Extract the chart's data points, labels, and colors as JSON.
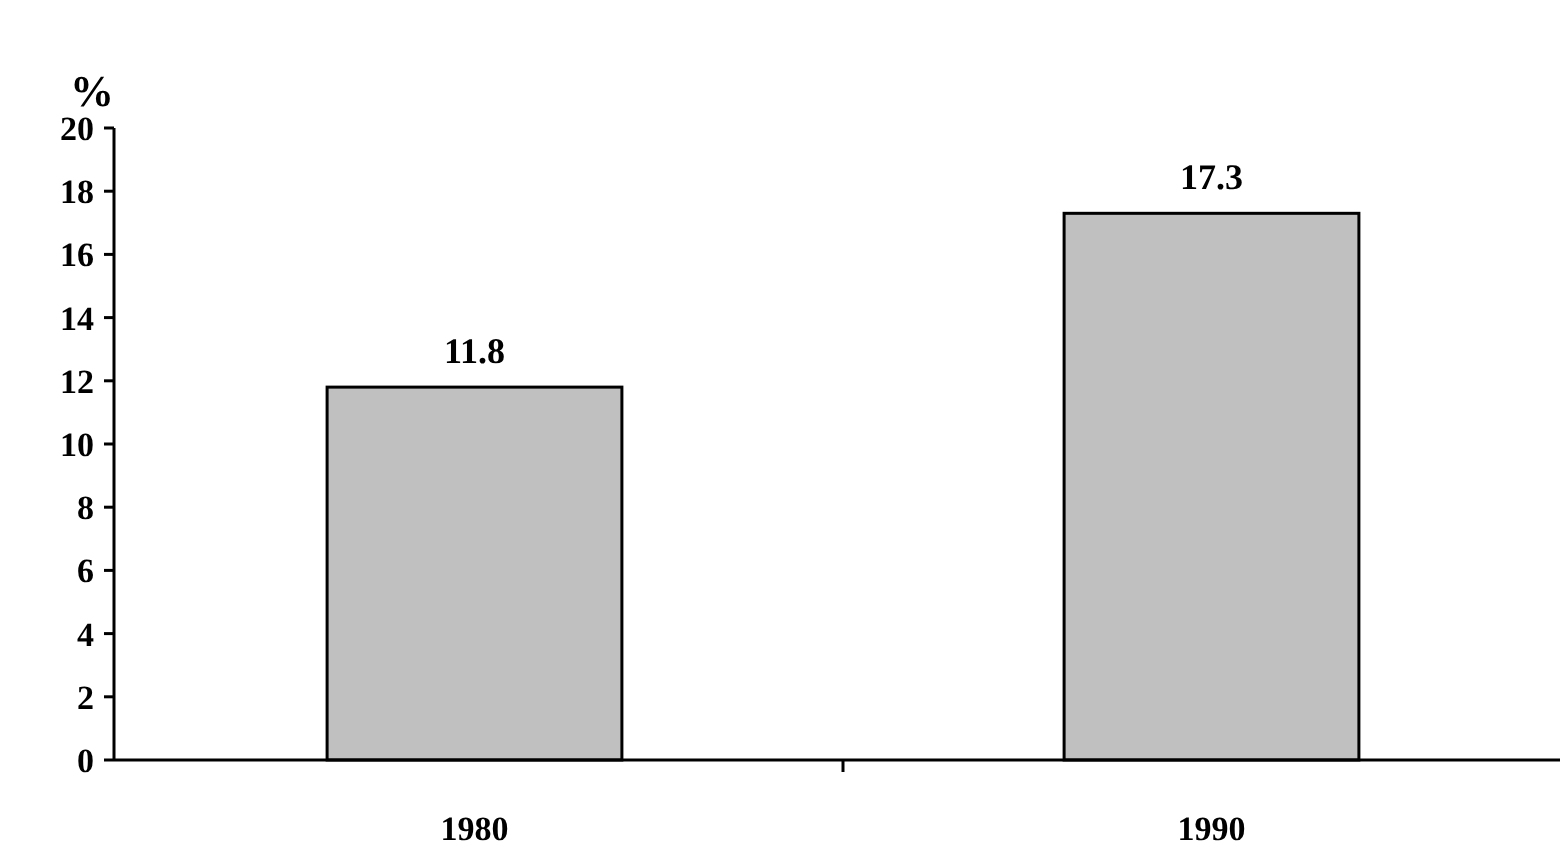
{
  "chart_data": {
    "type": "bar",
    "ylabel": "%",
    "categories": [
      "1980",
      "1990"
    ],
    "values": [
      11.8,
      17.3
    ],
    "color": "#c0c0c0",
    "ylim": [
      0,
      20
    ],
    "yticks": [
      0,
      2,
      4,
      6,
      8,
      10,
      12,
      14,
      16,
      18,
      20
    ],
    "data_labels": true,
    "grid": false
  }
}
